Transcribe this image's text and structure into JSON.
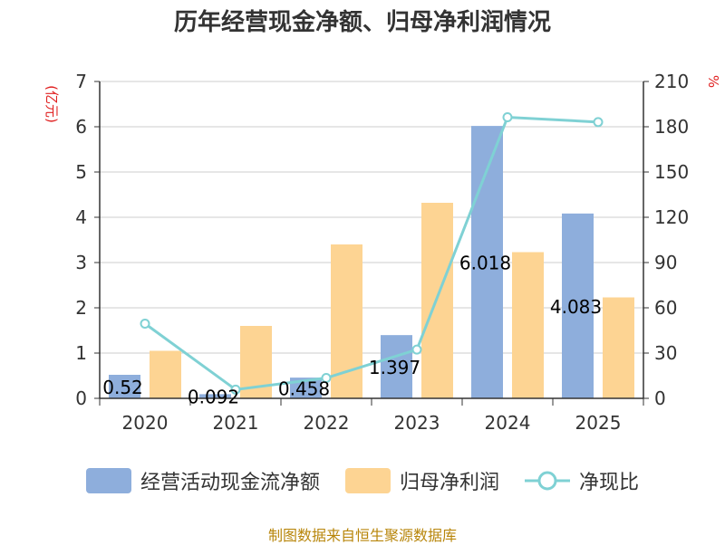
{
  "chart_data": {
    "type": "bar+line",
    "title": "历年经营现金净额、归母净利润情况",
    "categories": [
      "2020",
      "2021",
      "2022",
      "2023",
      "2024",
      "2025"
    ],
    "series": [
      {
        "name": "经营活动现金流净额",
        "type": "bar",
        "axis": "left",
        "values": [
          0.52,
          0.092,
          0.458,
          1.397,
          6.018,
          4.083
        ],
        "labels": [
          "0.52",
          "0.092",
          "0.458",
          "1.397",
          "6.018",
          "4.083"
        ],
        "color": "#8eaedc"
      },
      {
        "name": "归母净利润",
        "type": "bar",
        "axis": "left",
        "values": [
          1.05,
          1.6,
          3.4,
          4.32,
          3.23,
          2.23
        ],
        "color": "#fdd493"
      },
      {
        "name": "净现比",
        "type": "line",
        "axis": "right",
        "values": [
          49.5,
          5.8,
          13.5,
          32.3,
          186.3,
          183.1
        ],
        "color": "#7fd1d4"
      }
    ],
    "ylabel_left": "(亿元)",
    "ylabel_right": "%",
    "ylim_left": [
      0,
      7
    ],
    "yticks_left": [
      "0",
      "1",
      "2",
      "3",
      "4",
      "5",
      "6",
      "7"
    ],
    "ylim_right": [
      0,
      210
    ],
    "yticks_right": [
      "0",
      "30",
      "60",
      "90",
      "120",
      "150",
      "180",
      "210"
    ],
    "grid": true,
    "legend_position": "bottom"
  },
  "source": "制图数据来自恒生聚源数据库"
}
